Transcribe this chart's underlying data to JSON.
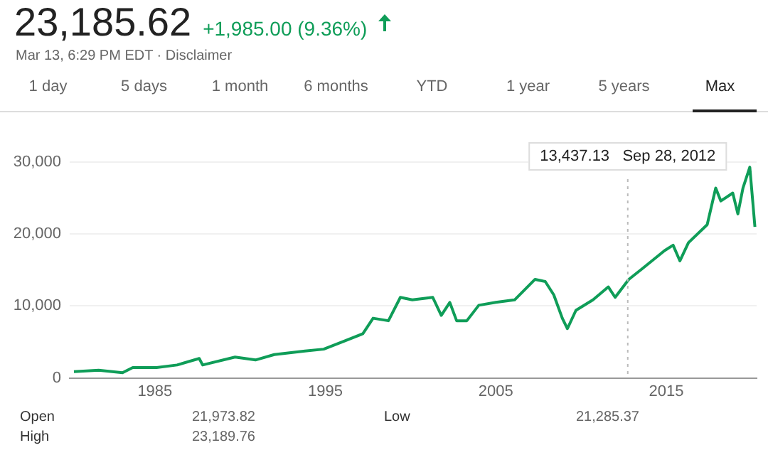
{
  "chart_data": {
    "type": "line",
    "title": "23,185.62",
    "subtitle": "+1,985.00 (9.36%)",
    "annotations": [
      "Mar 13, 6:29 PM EDT · Disclaimer",
      "1 day",
      "5 days",
      "1 month",
      "6 months",
      "YTD",
      "1 year",
      "5 years",
      "Max",
      "Open",
      "21,973.82",
      "Low",
      "21,285.37",
      "High",
      "23,189.76"
    ],
    "x": [
      1980.25,
      1981.7,
      1983.1,
      1983.7,
      1985.1,
      1986.3,
      1987.6,
      1987.8,
      1989.7,
      1990.9,
      1992,
      1993.8,
      1994.9,
      1996.1,
      1997.2,
      1997.8,
      1998.7,
      1999.4,
      2000.1,
      2001.3,
      2001.8,
      2002.3,
      2002.7,
      2003.3,
      2004.0,
      2005.0,
      2006.1,
      2007.3,
      2007.9,
      2008.4,
      2008.9,
      2009.2,
      2009.7,
      2010.7,
      2011.6,
      2012.0,
      2012.8,
      2013.6,
      2014.9,
      2015.4,
      2015.8,
      2016.3,
      2017.4,
      2017.9,
      2018.2,
      2018.9,
      2019.2,
      2019.5,
      2019.9,
      2020.2
    ],
    "series": [
      {
        "color": "#0f9d58",
        "values": [
          870,
          1080,
          720,
          1450,
          1450,
          1800,
          2700,
          1800,
          2900,
          2500,
          3250,
          3750,
          4000,
          5100,
          6150,
          8300,
          7950,
          11200,
          10850,
          11200,
          8700,
          10500,
          7950,
          7950,
          10100,
          10500,
          10850,
          13700,
          13400,
          11550,
          8300,
          6850,
          9400,
          10850,
          12650,
          11200,
          13700,
          15200,
          17700,
          18450,
          16270,
          18800,
          21300,
          26400,
          24600,
          25700,
          22800,
          26400,
          29300,
          21000
        ]
      }
    ],
    "xlim": [
      1980,
      2020.3
    ],
    "xticks": [
      1985,
      1995,
      2005,
      2015
    ],
    "ylim": [
      0,
      30000
    ],
    "yticks": [
      {
        "value": 0,
        "label": "0"
      },
      {
        "value": 10000,
        "label": "10,000"
      },
      {
        "value": 20000,
        "label": "20,000"
      },
      {
        "value": 30000,
        "label": "30,000"
      }
    ],
    "grid": "y",
    "legend": false,
    "marker": "none",
    "line_style": "solid",
    "ref_lines": [
      {
        "axis": "x",
        "value": 2012.74,
        "label": "13,437.13   Sep 28, 2012",
        "color": "#bbbbbb",
        "line_style": "dotted"
      }
    ]
  }
}
